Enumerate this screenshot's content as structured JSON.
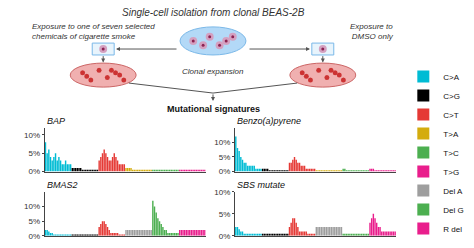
{
  "title": "Single-cell isolation from clonal BEAS-2B",
  "annotations": [
    "Exposure to one of seven selected\nchemicals of cigarette smoke",
    "Exposure to\nDMSO only",
    "Clonal expansion",
    "Mutational signatures"
  ],
  "chart_data": [
    {
      "type": "bar",
      "title": "BAP",
      "categories": [
        null,
        null,
        null,
        null,
        null,
        null,
        null,
        null,
        null,
        null,
        null,
        null,
        null,
        null,
        null,
        null
      ],
      "series": [
        {
          "name": "C>A",
          "color": "#00bcd4",
          "values": [
            8,
            5,
            6,
            4,
            3,
            4,
            5,
            3,
            4,
            3,
            2,
            2,
            3,
            2,
            2,
            2
          ]
        },
        {
          "name": "C>G",
          "color": "#000000",
          "values": [
            1,
            1,
            1,
            1,
            1,
            1,
            0.5,
            0.5,
            0.5,
            0.5,
            0.5,
            0.5,
            0.5,
            0.5,
            0.5,
            0.5
          ]
        },
        {
          "name": "C>T",
          "color": "#e53935",
          "values": [
            3,
            4,
            5,
            6,
            5,
            4,
            3,
            3,
            4,
            5,
            4,
            3,
            2,
            2,
            2,
            2
          ]
        },
        {
          "name": "T>A",
          "color": "#d4ac0d",
          "values": [
            1,
            1,
            1,
            1,
            0.5,
            0.5,
            0.5,
            0.5,
            0.5,
            0.5,
            0.5,
            0.5,
            0.5,
            0.5,
            0.5,
            0.5
          ]
        },
        {
          "name": "T>C",
          "color": "#4caf50",
          "values": [
            0.5,
            0.5,
            0.5,
            0.5,
            0.5,
            0.5,
            0.5,
            0.5,
            0.5,
            0.5,
            0.5,
            0.5,
            0.5,
            0.5,
            0.5,
            0.5
          ]
        },
        {
          "name": "T>G",
          "color": "#e91e8c",
          "values": [
            0.5,
            0.5,
            0.5,
            0.5,
            0.5,
            0.5,
            0.5,
            0.5,
            0.5,
            0.5,
            0.5,
            0.5,
            0.5,
            0.5,
            0.5,
            0.5
          ]
        }
      ],
      "ylim": [
        0,
        12
      ],
      "yticks": [
        {
          "value": 0,
          "label": "0%"
        },
        {
          "value": 5,
          "label": "5%"
        },
        {
          "value": 10,
          "label": "10%"
        }
      ],
      "grid": false,
      "tick_labels": "y",
      "legend": "right"
    },
    {
      "type": "bar",
      "title": "Benzo(a)pyrene",
      "categories": [
        null,
        null,
        null,
        null,
        null,
        null,
        null,
        null,
        null,
        null,
        null,
        null,
        null,
        null,
        null,
        null
      ],
      "series": [
        {
          "name": "C>A",
          "color": "#00bcd4",
          "values": [
            12,
            8,
            7,
            5,
            4,
            3,
            3,
            2,
            2,
            2,
            2,
            2,
            1,
            1,
            1,
            1
          ]
        },
        {
          "name": "C>G",
          "color": "#000000",
          "values": [
            1,
            1,
            1,
            1,
            0.5,
            0.5,
            0.5,
            0.5,
            0.5,
            0.5,
            0.5,
            0.5,
            0.5,
            0.5,
            0.5,
            0.5
          ]
        },
        {
          "name": "C>T",
          "color": "#e53935",
          "values": [
            3,
            3,
            4,
            5,
            4,
            3,
            3,
            2,
            2,
            2,
            1,
            1,
            1,
            1,
            1,
            1
          ]
        },
        {
          "name": "T>A",
          "color": "#d4ac0d",
          "values": [
            0.5,
            0.5,
            0.5,
            0.5,
            0.5,
            0.5,
            0.5,
            0.5,
            0.5,
            0.5,
            0.5,
            0.5,
            0.5,
            0.5,
            0.5,
            0.5
          ]
        },
        {
          "name": "T>C",
          "color": "#4caf50",
          "values": [
            1,
            1,
            0.5,
            0.5,
            0.5,
            0.5,
            0.5,
            0.5,
            0.5,
            0.5,
            0.5,
            0.5,
            0.5,
            0.5,
            0.5,
            0.5
          ]
        },
        {
          "name": "T>G",
          "color": "#e91e8c",
          "values": [
            1,
            1,
            1,
            0.5,
            0.5,
            0.5,
            0.5,
            0.5,
            0.5,
            0.5,
            0.5,
            0.5,
            0.5,
            0.5,
            0.5,
            0.5
          ]
        }
      ],
      "ylim": [
        0,
        15
      ],
      "yticks": [
        {
          "value": 0,
          "label": "0%"
        },
        {
          "value": 5,
          "label": "5%"
        },
        {
          "value": 10,
          "label": "10%"
        }
      ],
      "grid": false,
      "tick_labels": "y",
      "legend": "right"
    },
    {
      "type": "bar",
      "title": "BMAS2",
      "categories": [
        null,
        null,
        null,
        null,
        null,
        null,
        null,
        null,
        null,
        null,
        null,
        null,
        null,
        null,
        null,
        null
      ],
      "series": [
        {
          "name": "C>A",
          "color": "#00bcd4",
          "values": [
            2,
            2,
            1.5,
            1,
            1,
            0.5,
            0.5,
            0.5,
            0.5,
            0.5,
            0.5,
            0.5,
            0.5,
            0.5,
            0.5,
            0.5
          ]
        },
        {
          "name": "C>G",
          "color": "#000000",
          "values": [
            0.5,
            0.5,
            0.5,
            0.5,
            0.5,
            0.5,
            0.5,
            0.5,
            0.5,
            0.5,
            0.5,
            0.5,
            0.5,
            0.5,
            0.5,
            0.5
          ]
        },
        {
          "name": "C>T",
          "color": "#e53935",
          "values": [
            3,
            4,
            5,
            5,
            4,
            3,
            2,
            1,
            1,
            1,
            1,
            1,
            0.5,
            0.5,
            0.5,
            0.5
          ]
        },
        {
          "name": "Del A",
          "color": "#9e9e9e",
          "values": [
            2,
            2,
            2,
            2,
            2,
            2,
            2,
            2,
            2,
            2,
            2,
            2,
            2,
            2,
            2,
            2
          ]
        },
        {
          "name": "Del G",
          "color": "#4caf50",
          "values": [
            12,
            10,
            8,
            6,
            5,
            4,
            3,
            2,
            2,
            1,
            1,
            1,
            1,
            1,
            1,
            1
          ]
        },
        {
          "name": "R del",
          "color": "#e91e8c",
          "values": [
            2,
            2,
            2,
            2,
            2,
            2,
            2,
            2,
            2,
            2,
            2,
            2,
            2,
            2,
            2,
            2
          ]
        }
      ],
      "ylim": [
        0,
        15
      ],
      "yticks": [
        {
          "value": 0,
          "label": "0%"
        },
        {
          "value": 5,
          "label": "5%"
        },
        {
          "value": 10,
          "label": "10%"
        }
      ],
      "grid": false,
      "tick_labels": "y",
      "legend": "right"
    },
    {
      "type": "bar",
      "title": "SBS mutate",
      "categories": [
        null,
        null,
        null,
        null,
        null,
        null,
        null,
        null,
        null,
        null,
        null,
        null,
        null,
        null,
        null,
        null
      ],
      "series": [
        {
          "name": "C>A",
          "color": "#00bcd4",
          "values": [
            2,
            2,
            1.5,
            1,
            1,
            0.5,
            0.5,
            0.5,
            0.5,
            0.5,
            0.5,
            0.5,
            0.5,
            0.5,
            0.5,
            0.5
          ]
        },
        {
          "name": "C>G",
          "color": "#000000",
          "values": [
            0.5,
            0.5,
            0.5,
            0.5,
            0.5,
            0.5,
            0.5,
            0.5,
            0.5,
            0.5,
            0.5,
            0.5,
            0.5,
            0.5,
            0.5,
            0.5
          ]
        },
        {
          "name": "C>T",
          "color": "#e53935",
          "values": [
            2,
            3,
            4,
            4,
            3,
            2,
            1,
            1,
            1,
            1,
            1,
            0.5,
            0.5,
            0.5,
            0.5,
            0.5
          ]
        },
        {
          "name": "Del A",
          "color": "#9e9e9e",
          "values": [
            2,
            2,
            2,
            2,
            2,
            2,
            2,
            2,
            2,
            2,
            2,
            2,
            2,
            2,
            2,
            2
          ]
        },
        {
          "name": "Del G",
          "color": "#4caf50",
          "values": [
            0.5,
            0.5,
            0.5,
            0.5,
            0.5,
            0.5,
            0.5,
            0.5,
            0.5,
            0.5,
            0.5,
            0.5,
            0.5,
            0.5,
            0.5,
            0.5
          ]
        },
        {
          "name": "R del",
          "color": "#e91e8c",
          "values": [
            3,
            4,
            5,
            4,
            3,
            2,
            2,
            1,
            1,
            1,
            1,
            1,
            1,
            1,
            1,
            1
          ]
        }
      ],
      "ylim": [
        0,
        10
      ],
      "yticks": [
        {
          "value": 0,
          "label": "0%"
        },
        {
          "value": 5,
          "label": "5%"
        },
        {
          "value": 10,
          "label": "10%"
        }
      ],
      "grid": false,
      "tick_labels": "y",
      "legend": "right"
    }
  ]
}
